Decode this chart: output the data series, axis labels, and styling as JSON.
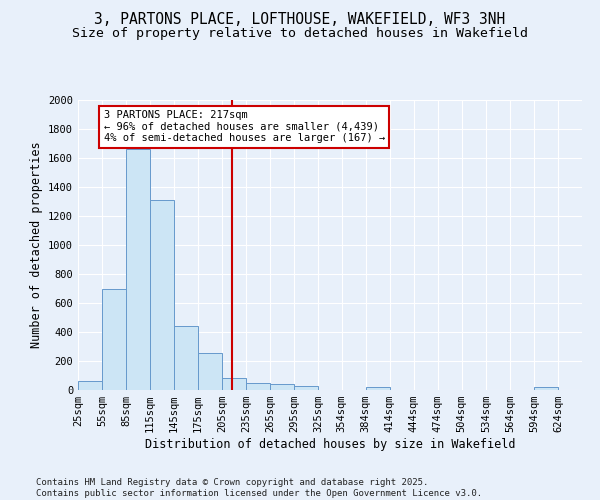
{
  "title": "3, PARTONS PLACE, LOFTHOUSE, WAKEFIELD, WF3 3NH",
  "subtitle": "Size of property relative to detached houses in Wakefield",
  "xlabel": "Distribution of detached houses by size in Wakefield",
  "ylabel": "Number of detached properties",
  "bins": [
    "25sqm",
    "55sqm",
    "85sqm",
    "115sqm",
    "145sqm",
    "175sqm",
    "205sqm",
    "235sqm",
    "265sqm",
    "295sqm",
    "325sqm",
    "354sqm",
    "384sqm",
    "414sqm",
    "444sqm",
    "474sqm",
    "504sqm",
    "534sqm",
    "564sqm",
    "594sqm",
    "624sqm"
  ],
  "bar_values": [
    60,
    700,
    1660,
    1310,
    440,
    255,
    85,
    50,
    40,
    25,
    0,
    0,
    20,
    0,
    0,
    0,
    0,
    0,
    0,
    20,
    0
  ],
  "bin_edges": [
    25,
    55,
    85,
    115,
    145,
    175,
    205,
    235,
    265,
    295,
    325,
    354,
    384,
    414,
    444,
    474,
    504,
    534,
    564,
    594,
    624,
    654
  ],
  "bar_color": "#cce5f5",
  "bar_edge_color": "#6699cc",
  "vline_x": 217,
  "vline_color": "#cc0000",
  "annotation_text": "3 PARTONS PLACE: 217sqm\n← 96% of detached houses are smaller (4,439)\n4% of semi-detached houses are larger (167) →",
  "annotation_box_color": "#ffffff",
  "annotation_box_edge": "#cc0000",
  "ylim": [
    0,
    2000
  ],
  "yticks": [
    0,
    200,
    400,
    600,
    800,
    1000,
    1200,
    1400,
    1600,
    1800,
    2000
  ],
  "background_color": "#e8f0fa",
  "grid_color": "#ffffff",
  "footer": "Contains HM Land Registry data © Crown copyright and database right 2025.\nContains public sector information licensed under the Open Government Licence v3.0.",
  "title_fontsize": 10.5,
  "subtitle_fontsize": 9.5,
  "axis_label_fontsize": 8.5,
  "tick_fontsize": 7.5,
  "annotation_fontsize": 7.5,
  "footer_fontsize": 6.5
}
